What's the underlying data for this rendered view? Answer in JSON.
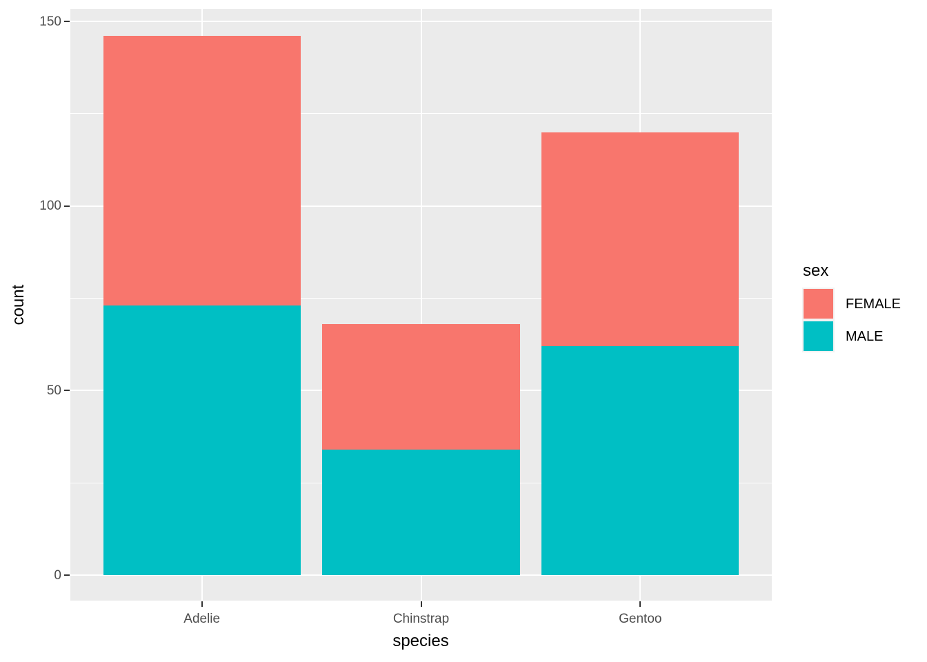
{
  "chart_data": {
    "type": "bar",
    "subtype": "stacked-vertical",
    "title": "",
    "xlabel": "species",
    "ylabel": "count",
    "categories": [
      "Adelie",
      "Chinstrap",
      "Gentoo"
    ],
    "series": [
      {
        "name": "FEMALE",
        "color": "#F8766D",
        "values": [
          73,
          34,
          58
        ]
      },
      {
        "name": "MALE",
        "color": "#00BFC4",
        "values": [
          73,
          34,
          62
        ]
      }
    ],
    "stack_totals": [
      146,
      68,
      120
    ],
    "stack_order_top_to_bottom": [
      "FEMALE",
      "MALE"
    ],
    "ylim": [
      0,
      150
    ],
    "y_major_ticks": [
      0,
      50,
      100,
      150
    ],
    "y_minor_ticks": [
      25,
      75,
      125
    ],
    "grid": "major-and-minor-white-on-gray",
    "legend": {
      "title": "sex",
      "position": "right",
      "entries": [
        "FEMALE",
        "MALE"
      ]
    },
    "theme": {
      "panel_background": "#EBEBEB",
      "plot_background": "#FFFFFF",
      "gridline_color": "#FFFFFF",
      "tick_mark_color": "#333333",
      "tick_label_color": "#4D4D4D",
      "axis_title_color": "#000000",
      "legend_key_background": "#F2F2F2",
      "female_color": "#F8766D",
      "male_color": "#00BFC4"
    }
  }
}
